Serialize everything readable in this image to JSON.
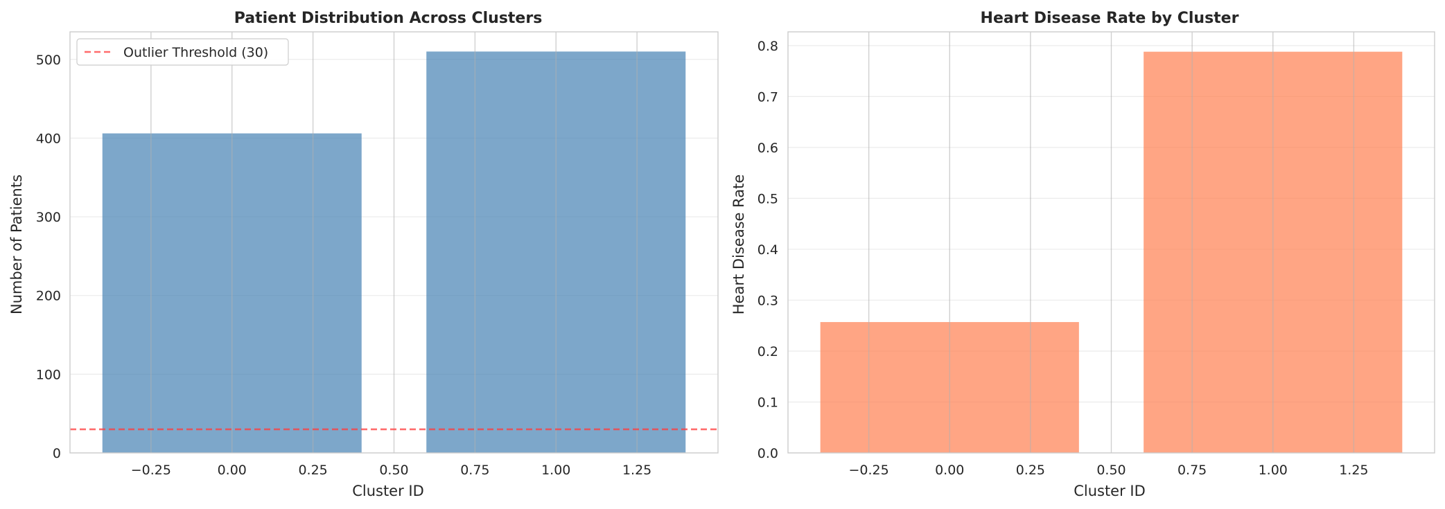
{
  "chart_data": [
    {
      "type": "bar",
      "title": "Patient Distribution Across Clusters",
      "xlabel": "Cluster ID",
      "ylabel": "Number of Patients",
      "x": [
        0,
        1
      ],
      "values": [
        406,
        510
      ],
      "bar_width": 0.8,
      "xlim": [
        -0.5,
        1.5
      ],
      "ylim": [
        0,
        535
      ],
      "xticks": [
        -0.25,
        0.0,
        0.25,
        0.5,
        0.75,
        1.0,
        1.25
      ],
      "xtick_labels": [
        "−0.25",
        "0.00",
        "0.25",
        "0.50",
        "0.75",
        "1.00",
        "1.25"
      ],
      "yticks": [
        0,
        100,
        200,
        300,
        400,
        500
      ],
      "ytick_labels": [
        "0",
        "100",
        "200",
        "300",
        "400",
        "500"
      ],
      "bar_color": "#4682b4",
      "threshold": {
        "value": 30,
        "label": "Outlier Threshold (30)",
        "color": "#ff3b3b"
      },
      "legend_position": "top-left",
      "grid": true
    },
    {
      "type": "bar",
      "title": "Heart Disease Rate by Cluster",
      "xlabel": "Cluster ID",
      "ylabel": "Heart Disease Rate",
      "x": [
        0,
        1
      ],
      "values": [
        0.257,
        0.788
      ],
      "bar_width": 0.8,
      "xlim": [
        -0.5,
        1.5
      ],
      "ylim": [
        0,
        0.827
      ],
      "xticks": [
        -0.25,
        0.0,
        0.25,
        0.5,
        0.75,
        1.0,
        1.25
      ],
      "xtick_labels": [
        "−0.25",
        "0.00",
        "0.25",
        "0.50",
        "0.75",
        "1.00",
        "1.25"
      ],
      "yticks": [
        0,
        0.1,
        0.2,
        0.3,
        0.4,
        0.5,
        0.6,
        0.7,
        0.8
      ],
      "ytick_labels": [
        "0.0",
        "0.1",
        "0.2",
        "0.3",
        "0.4",
        "0.5",
        "0.6",
        "0.7",
        "0.8"
      ],
      "bar_color": "#ff7f50",
      "grid": true
    }
  ]
}
